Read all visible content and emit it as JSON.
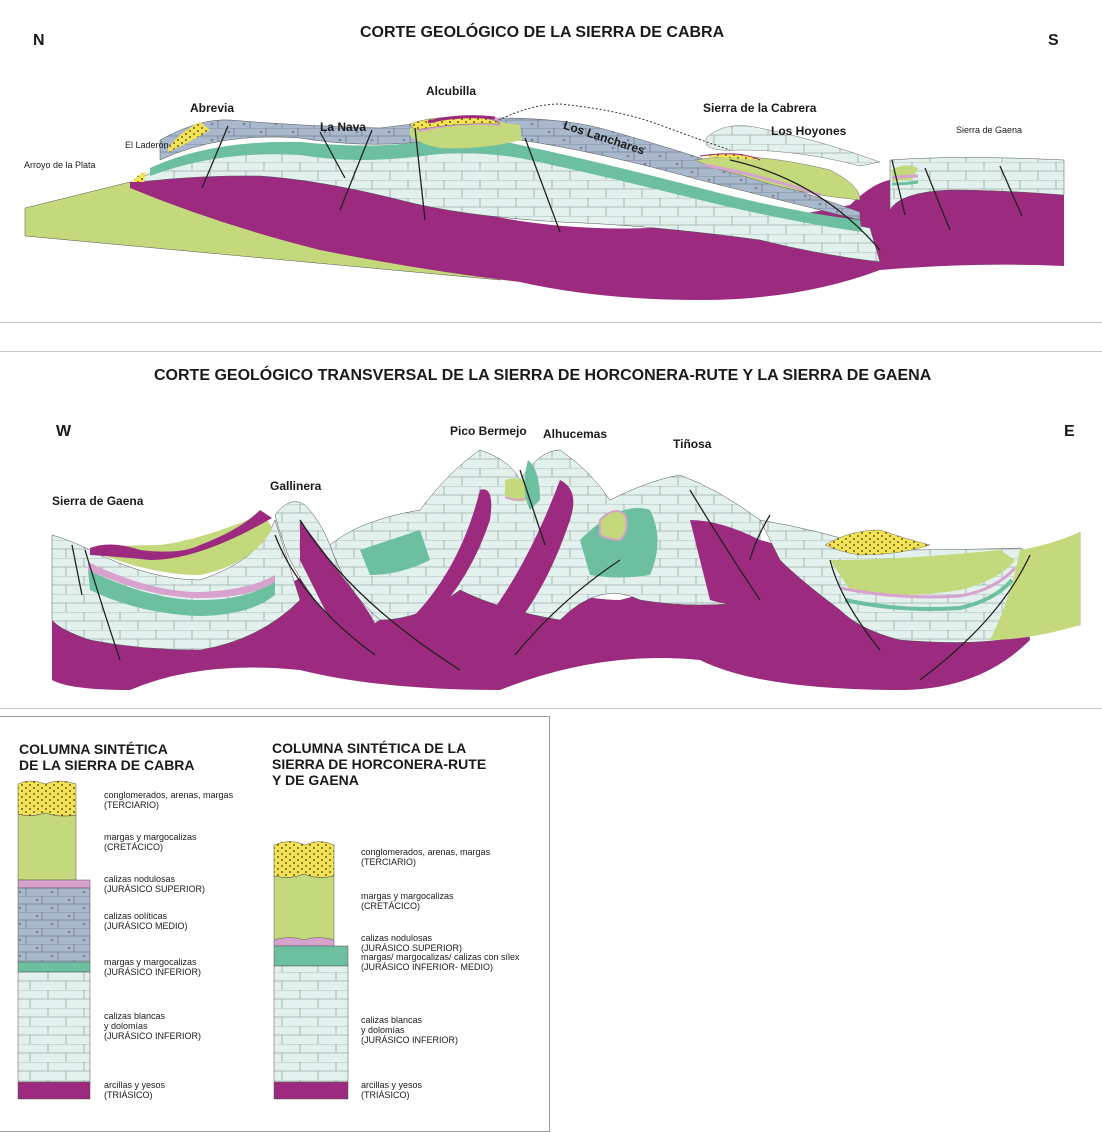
{
  "section1": {
    "title": "CORTE GEOLÓGICO DE LA SIERRA DE CABRA",
    "north": "N",
    "south": "S",
    "places": {
      "abrevia": "Abrevia",
      "alcubilla": "Alcubilla",
      "la_nava": "La Nava",
      "el_laderon": "El Laderón",
      "arroyo_plata": "Arroyo de la Plata",
      "sierra_cabrera": "Sierra de la Cabrera",
      "los_hoyones": "Los Hoyones",
      "sierra_gaena": "Sierra de Gaena",
      "los_lanchares": "Los Lanchares"
    }
  },
  "section2": {
    "title": "CORTE GEOLÓGICO TRANSVERSAL DE LA SIERRA DE HORCONERA-RUTE  Y LA SIERRA DE GAENA",
    "west": "W",
    "east": "E",
    "places": {
      "pico_bermejo": "Pico Bermejo",
      "alhucemas": "Alhucemas",
      "tinosa": "Tiñosa",
      "gallinera": "Gallinera",
      "sierra_gaena": "Sierra de Gaena"
    }
  },
  "legend": {
    "cabra": {
      "title": [
        "COLUMNA SINTÉTICA",
        "DE LA SIERRA DE CABRA"
      ],
      "units": [
        {
          "lines": [
            "conglomerados, arenas, margas",
            "(TERCIARIO)"
          ]
        },
        {
          "lines": [
            "margas y margocalizas",
            "(CRETÁCICO)"
          ]
        },
        {
          "lines": [
            "calizas nodulosas",
            "(JURÁSICO SUPERIOR)"
          ]
        },
        {
          "lines": [
            "calizas oolíticas",
            "(JURÁSICO MEDIO)"
          ]
        },
        {
          "lines": [
            "margas y margocalizas",
            "(JURÁSICO INFERIOR)"
          ]
        },
        {
          "lines": [
            "calizas blancas",
            " y dolomías",
            "(JURÁSICO INFERIOR)"
          ]
        },
        {
          "lines": [
            "arcillas y yesos",
            "(TRIÁSICO)"
          ]
        }
      ]
    },
    "horconera": {
      "title": [
        "COLUMNA SINTÉTICA DE LA",
        "SIERRA DE HORCONERA-RUTE",
        "Y DE GAENA"
      ],
      "units": [
        {
          "lines": [
            "conglomerados, arenas, margas",
            "(TERCIARIO)"
          ]
        },
        {
          "lines": [
            "margas y margocalizas",
            "(CRETÁCICO)"
          ]
        },
        {
          "lines": [
            "calizas nodulosas",
            "(JURÁSICO SUPERIOR)"
          ]
        },
        {
          "lines": [
            "margas/ margocalizas/ calizas con sílex",
            "(JURÁSICO INFERIOR- MEDIO)"
          ]
        },
        {
          "lines": [
            "calizas blancas",
            "y dolomías",
            "(JURÁSICO INFERIOR)"
          ]
        },
        {
          "lines": [
            "arcillas y yesos",
            "(TRIÁSICO)"
          ]
        }
      ]
    }
  },
  "colors": {
    "triasico": "#9c2a7f",
    "cretacico": "#c4d97c",
    "jurasico_inf_calizas": "#e2f1ed",
    "jurasico_inf_margas": "#6cbf9f",
    "jurasico_sup": "#d8a2ce",
    "jurasico_medio": "#a9b8cc",
    "terciario": "#f4e455"
  }
}
